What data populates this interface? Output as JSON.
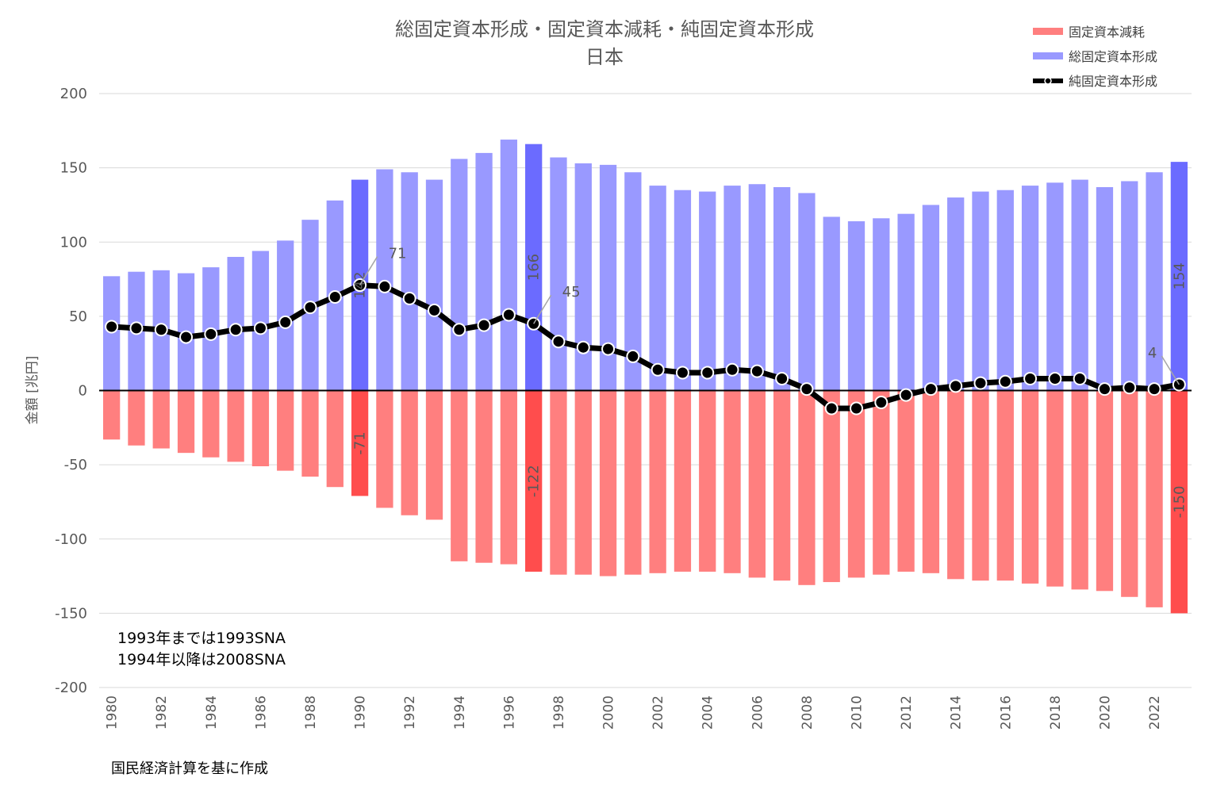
{
  "chart_data": {
    "type": "bar",
    "title": "総固定資本形成・固定資本減耗・純固定資本形成",
    "subtitle": "日本",
    "ylabel": "金額 [兆円]",
    "ylim": [
      -200,
      200
    ],
    "yticks": [
      200,
      150,
      100,
      50,
      0,
      -50,
      -100,
      -150,
      -200
    ],
    "grid": true,
    "legend_position": "top-right",
    "categories": [
      "1980",
      "1981",
      "1982",
      "1983",
      "1984",
      "1985",
      "1986",
      "1987",
      "1988",
      "1989",
      "1990",
      "1991",
      "1992",
      "1993",
      "1994",
      "1995",
      "1996",
      "1997",
      "1998",
      "1999",
      "2000",
      "2001",
      "2002",
      "2003",
      "2004",
      "2005",
      "2006",
      "2007",
      "2008",
      "2009",
      "2010",
      "2011",
      "2012",
      "2013",
      "2014",
      "2015",
      "2016",
      "2017",
      "2018",
      "2019",
      "2020",
      "2021",
      "2022",
      "2023"
    ],
    "xtick_labels": [
      "1980",
      "1982",
      "1984",
      "1986",
      "1988",
      "1990",
      "1992",
      "1994",
      "1996",
      "1998",
      "2000",
      "2002",
      "2004",
      "2006",
      "2008",
      "2010",
      "2012",
      "2014",
      "2016",
      "2018",
      "2020",
      "2022"
    ],
    "highlight_indices": [
      10,
      17,
      43
    ],
    "series": [
      {
        "name": "固定資本減耗",
        "kind": "bar",
        "color": "#ff7f7f",
        "highlight_color": "#ff4d4d",
        "values": [
          -33,
          -37,
          -39,
          -42,
          -45,
          -48,
          -51,
          -54,
          -58,
          -65,
          -71,
          -79,
          -84,
          -87,
          -115,
          -116,
          -117,
          -122,
          -124,
          -124,
          -125,
          -124,
          -123,
          -122,
          -122,
          -123,
          -126,
          -128,
          -131,
          -129,
          -126,
          -124,
          -122,
          -123,
          -127,
          -128,
          -128,
          -130,
          -132,
          -134,
          -135,
          -139,
          -146,
          -150
        ]
      },
      {
        "name": "総固定資本形成",
        "kind": "bar",
        "color": "#9999ff",
        "highlight_color": "#6b6bff",
        "values": [
          77,
          80,
          81,
          79,
          83,
          90,
          94,
          101,
          115,
          128,
          142,
          149,
          147,
          142,
          156,
          160,
          169,
          166,
          157,
          153,
          152,
          147,
          138,
          135,
          134,
          138,
          139,
          137,
          133,
          117,
          114,
          116,
          119,
          125,
          130,
          134,
          135,
          138,
          140,
          142,
          137,
          141,
          147,
          154
        ]
      },
      {
        "name": "純固定資本形成",
        "kind": "line",
        "color": "#000000",
        "values": [
          43,
          42,
          41,
          36,
          38,
          41,
          42,
          46,
          56,
          63,
          71,
          70,
          62,
          54,
          41,
          44,
          51,
          45,
          33,
          29,
          28,
          23,
          14,
          12,
          12,
          14,
          13,
          8,
          1,
          -12,
          -12,
          -8,
          -3,
          1,
          3,
          5,
          6,
          8,
          8,
          8,
          1,
          2,
          1,
          4
        ]
      }
    ],
    "data_labels": [
      {
        "series": "総固定資本形成",
        "index": 10,
        "text": "142"
      },
      {
        "series": "総固定資本形成",
        "index": 17,
        "text": "166"
      },
      {
        "series": "総固定資本形成",
        "index": 43,
        "text": "154"
      },
      {
        "series": "固定資本減耗",
        "index": 10,
        "text": "-71"
      },
      {
        "series": "固定資本減耗",
        "index": 17,
        "text": "-122"
      },
      {
        "series": "固定資本減耗",
        "index": 43,
        "text": "-150"
      },
      {
        "series": "純固定資本形成",
        "index": 10,
        "text": "71"
      },
      {
        "series": "純固定資本形成",
        "index": 17,
        "text": "45"
      },
      {
        "series": "純固定資本形成",
        "index": 43,
        "text": "4"
      }
    ],
    "notes": [
      "1993年までは1993SNA",
      "1994年以降は2008SNA"
    ],
    "source": "国民経済計算を基に作成"
  }
}
